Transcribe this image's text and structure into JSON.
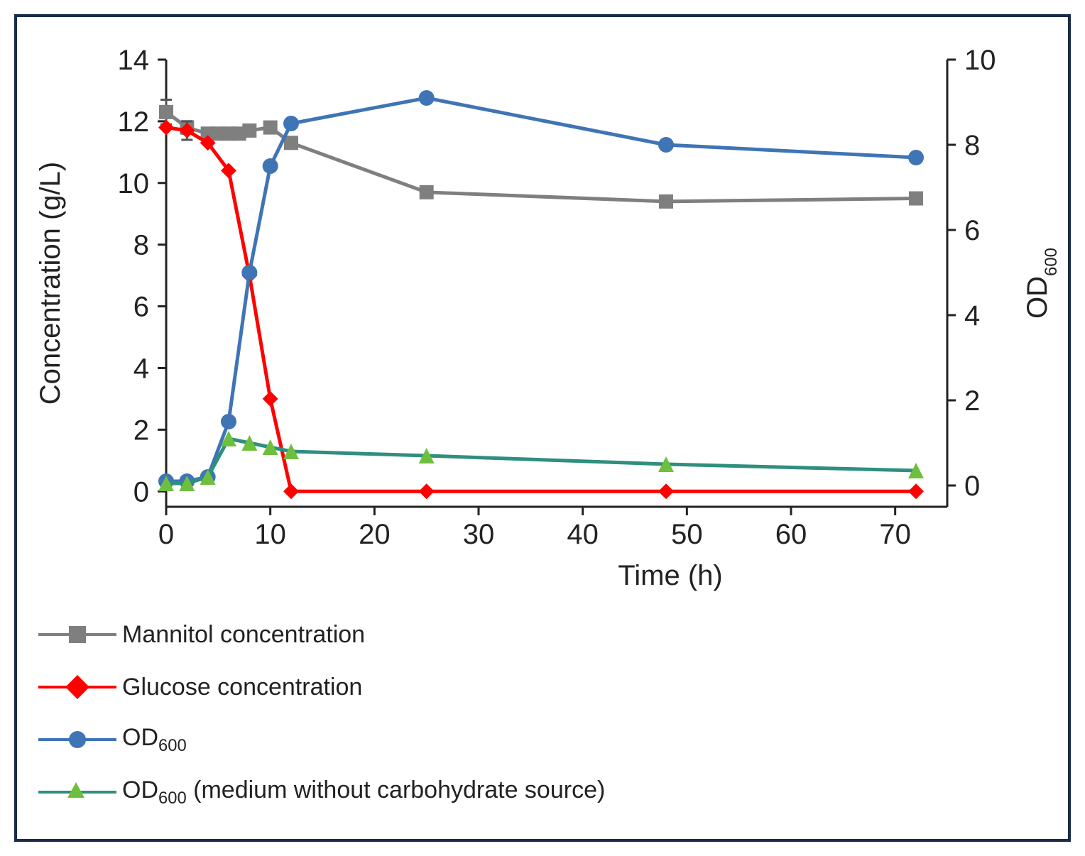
{
  "chart": {
    "type": "dual-axis-line",
    "background_color": "#ffffff",
    "border_color": "#1a2b4a",
    "x_axis": {
      "label": "Time (h)",
      "min": 0,
      "max": 75,
      "ticks": [
        0,
        10,
        20,
        30,
        40,
        50,
        60,
        70
      ],
      "label_fontsize": 40,
      "tick_fontsize": 40,
      "tick_color": "#222222"
    },
    "y_left": {
      "label": "Concentration (g/L)",
      "min": -0.5,
      "max": 14,
      "ticks": [
        0,
        2,
        4,
        6,
        8,
        10,
        12,
        14
      ],
      "label_fontsize": 40,
      "tick_fontsize": 40
    },
    "y_right": {
      "label": "OD",
      "label_sub": "600",
      "min": -0.5,
      "max": 10,
      "ticks": [
        0,
        2,
        4,
        6,
        8,
        10
      ],
      "label_fontsize": 40,
      "tick_fontsize": 40
    },
    "series": [
      {
        "id": "mannitol",
        "legend": "Mannitol concentration",
        "axis": "left",
        "marker": "square",
        "marker_size": 20,
        "line_width": 5,
        "color": "#7f7f7f",
        "x": [
          0,
          2,
          4,
          5,
          6,
          7,
          8,
          10,
          12,
          25,
          48,
          72
        ],
        "y": [
          12.3,
          11.8,
          11.6,
          11.6,
          11.6,
          11.6,
          11.7,
          11.8,
          11.3,
          9.7,
          9.4,
          9.5
        ],
        "yerr": [
          0.4,
          0.2,
          0.0,
          0.0,
          0.0,
          0.0,
          0.0,
          0.0,
          0.0,
          0.0,
          0.0,
          0.0
        ]
      },
      {
        "id": "glucose",
        "legend": "Glucose concentration",
        "axis": "left",
        "marker": "diamond",
        "marker_size": 22,
        "line_width": 5,
        "color": "#ff0000",
        "x": [
          0,
          2,
          4,
          6,
          8,
          10,
          12,
          25,
          48,
          72
        ],
        "y": [
          11.8,
          11.7,
          11.3,
          10.4,
          7.0,
          3.0,
          0.0,
          0.0,
          0.0,
          0.0
        ],
        "yerr": [
          0.0,
          0.3,
          0.0,
          0.0,
          0.0,
          0.0,
          0.0,
          0.0,
          0.0,
          0.0
        ]
      },
      {
        "id": "od600",
        "legend": "OD₆₀₀",
        "legend_plain": "OD",
        "legend_sub": "600",
        "axis": "right",
        "marker": "circle",
        "marker_size": 22,
        "line_width": 5,
        "color": "#3f74b5",
        "x": [
          0,
          2,
          4,
          6,
          8,
          10,
          12,
          25,
          48,
          72
        ],
        "y": [
          0.1,
          0.1,
          0.2,
          1.5,
          5.0,
          7.5,
          8.5,
          9.1,
          8.0,
          7.7
        ]
      },
      {
        "id": "od600_nocarb",
        "legend_plain": "OD",
        "legend_sub": "600",
        "legend_tail": "   (medium without carbohydrate source)",
        "axis": "right",
        "marker": "triangle",
        "marker_size": 22,
        "line_width": 5,
        "color_line": "#2f8f7f",
        "color_marker": "#6fbf3f",
        "x": [
          0,
          2,
          4,
          6,
          8,
          10,
          12,
          25,
          48,
          72
        ],
        "y": [
          0.05,
          0.05,
          0.2,
          1.1,
          1.0,
          0.9,
          0.8,
          0.7,
          0.5,
          0.35
        ]
      }
    ]
  }
}
